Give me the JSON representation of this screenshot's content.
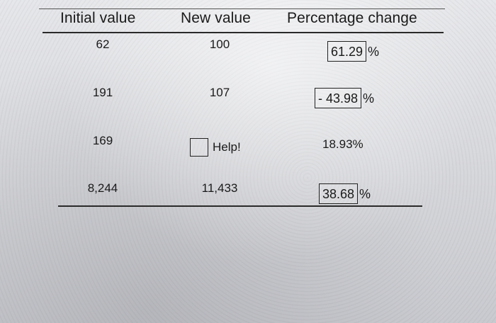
{
  "headers": {
    "initial": "Initial value",
    "new": "New value",
    "percent": "Percentage change"
  },
  "rows": [
    {
      "initial": "62",
      "new": "100",
      "percent": "61.29",
      "unit": "%"
    },
    {
      "initial": "191",
      "new": "107",
      "percent": "- 43.98",
      "unit": "%"
    },
    {
      "initial": "169",
      "new": "",
      "help": "Help!",
      "percent": "18.93%"
    },
    {
      "initial": "8,244",
      "new": "11,433",
      "percent": "38.68",
      "unit": "%"
    }
  ]
}
